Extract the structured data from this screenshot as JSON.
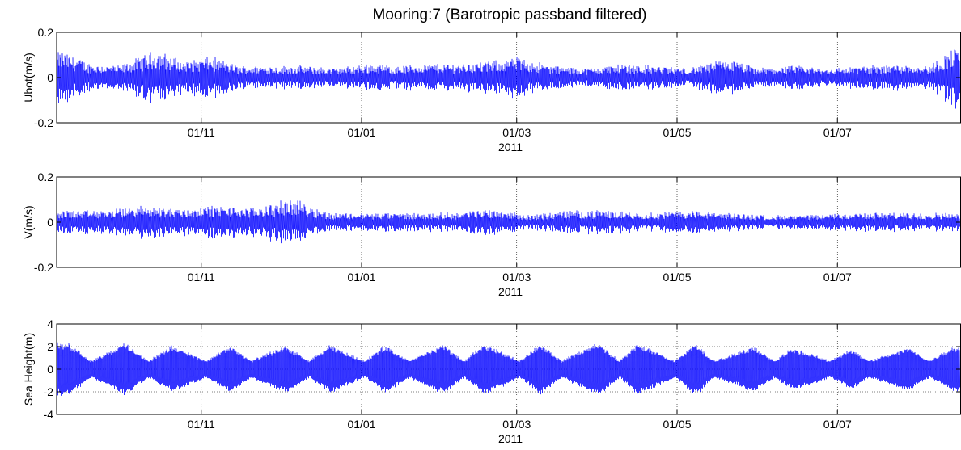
{
  "figure": {
    "title": "Mooring:7 (Barotropic passband filtered)"
  },
  "chart_data": [
    {
      "type": "line",
      "title": "Mooring:7 (Barotropic passband filtered)",
      "xlabel": "2011",
      "ylabel": "Ubot(m/s)",
      "xlim": [
        "2010-09-07",
        "2011-08-17"
      ],
      "ylim": [
        -0.2,
        0.2
      ],
      "xticks": [
        "2010-11-01",
        "2011-01-01",
        "2011-03-01",
        "2011-05-01",
        "2011-07-01"
      ],
      "xticklabels": [
        "01/11",
        "01/01",
        "01/03",
        "01/05",
        "01/07"
      ],
      "yticks": [
        -0.2,
        0,
        0.2
      ],
      "yticklabels": [
        "-0.2",
        "0",
        "0.2"
      ],
      "grid": "vertical dotted at x ticks",
      "color": "#0000ff",
      "series": [
        {
          "x": [
            "2010-09-10",
            "2010-09-20",
            "2010-10-01",
            "2010-10-15",
            "2010-10-25",
            "2010-11-05",
            "2010-11-15",
            "2010-11-28",
            "2010-12-10",
            "2010-12-22",
            "2011-01-05",
            "2011-01-15",
            "2011-01-25",
            "2011-02-05",
            "2011-02-20",
            "2011-03-01",
            "2011-03-15",
            "2011-03-28",
            "2011-04-10",
            "2011-04-25",
            "2011-05-05",
            "2011-05-20",
            "2011-06-01",
            "2011-06-15",
            "2011-06-28",
            "2011-07-10",
            "2011-07-25",
            "2011-08-05",
            "2011-08-14"
          ],
          "values": [
            0.11,
            0.06,
            0.05,
            0.12,
            0.07,
            0.09,
            0.05,
            0.05,
            0.05,
            0.04,
            0.06,
            0.05,
            0.06,
            0.06,
            0.07,
            0.09,
            0.05,
            0.04,
            0.06,
            0.05,
            0.04,
            0.08,
            0.04,
            0.05,
            0.04,
            0.05,
            0.06,
            0.05,
            0.13
          ]
        }
      ]
    },
    {
      "type": "line",
      "xlabel": "2011",
      "ylabel": "V(m/s)",
      "xlim": [
        "2010-09-07",
        "2011-08-17"
      ],
      "ylim": [
        -0.2,
        0.2
      ],
      "xticks": [
        "2010-11-01",
        "2011-01-01",
        "2011-03-01",
        "2011-05-01",
        "2011-07-01"
      ],
      "xticklabels": [
        "01/11",
        "01/01",
        "01/03",
        "01/05",
        "01/07"
      ],
      "yticks": [
        -0.2,
        0,
        0.2
      ],
      "yticklabels": [
        "-0.2",
        "0",
        "0.2"
      ],
      "grid": "vertical dotted at x ticks",
      "color": "#0000ff",
      "series": [
        {
          "x": [
            "2010-09-10",
            "2010-09-25",
            "2010-10-10",
            "2010-10-25",
            "2010-11-05",
            "2010-11-20",
            "2010-12-06",
            "2010-12-20",
            "2011-01-05",
            "2011-01-20",
            "2011-02-05",
            "2011-02-20",
            "2011-03-05",
            "2011-03-20",
            "2011-04-05",
            "2011-04-20",
            "2011-05-05",
            "2011-05-20",
            "2011-06-05",
            "2011-06-20",
            "2011-07-05",
            "2011-07-20",
            "2011-08-05",
            "2011-08-14"
          ],
          "values": [
            0.05,
            0.05,
            0.07,
            0.06,
            0.07,
            0.06,
            0.1,
            0.04,
            0.04,
            0.04,
            0.04,
            0.06,
            0.03,
            0.05,
            0.05,
            0.04,
            0.05,
            0.04,
            0.03,
            0.03,
            0.04,
            0.04,
            0.04,
            0.04
          ]
        }
      ]
    },
    {
      "type": "line",
      "xlabel": "2011",
      "ylabel": "Sea Height(m)",
      "xlim": [
        "2010-09-07",
        "2011-08-17"
      ],
      "ylim": [
        -4,
        4
      ],
      "xticks": [
        "2010-11-01",
        "2011-01-01",
        "2011-03-01",
        "2011-05-01",
        "2011-07-01"
      ],
      "xticklabels": [
        "01/11",
        "01/01",
        "01/03",
        "01/05",
        "01/07"
      ],
      "yticks": [
        -4,
        -2,
        0,
        2,
        4
      ],
      "yticklabels": [
        "-4",
        "-2",
        "0",
        "2",
        "4"
      ],
      "grid": "vertical and horizontal dotted",
      "color": "#0000ff",
      "series": [
        {
          "x": [
            "2010-09-12",
            "2010-09-20",
            "2010-10-03",
            "2010-10-12",
            "2010-10-21",
            "2010-11-03",
            "2010-11-12",
            "2010-11-20",
            "2010-12-03",
            "2010-12-12",
            "2010-12-20",
            "2011-01-02",
            "2011-01-10",
            "2011-01-19",
            "2011-02-01",
            "2011-02-09",
            "2011-02-17",
            "2011-03-02",
            "2011-03-10",
            "2011-03-18",
            "2011-04-01",
            "2011-04-09",
            "2011-04-16",
            "2011-04-30",
            "2011-05-08",
            "2011-05-15",
            "2011-05-30",
            "2011-06-07",
            "2011-06-14",
            "2011-06-28",
            "2011-07-06",
            "2011-07-13",
            "2011-07-28",
            "2011-08-05",
            "2011-08-14"
          ],
          "values": [
            2.4,
            0.8,
            2.4,
            0.8,
            2.2,
            0.8,
            2.2,
            0.8,
            2.2,
            0.8,
            2.2,
            0.8,
            2.2,
            0.8,
            2.3,
            0.8,
            2.4,
            0.8,
            2.4,
            0.8,
            2.5,
            0.8,
            2.4,
            0.8,
            2.4,
            0.8,
            2.1,
            0.8,
            2.0,
            0.8,
            1.9,
            0.8,
            2.0,
            0.8,
            2.1
          ]
        }
      ]
    }
  ]
}
